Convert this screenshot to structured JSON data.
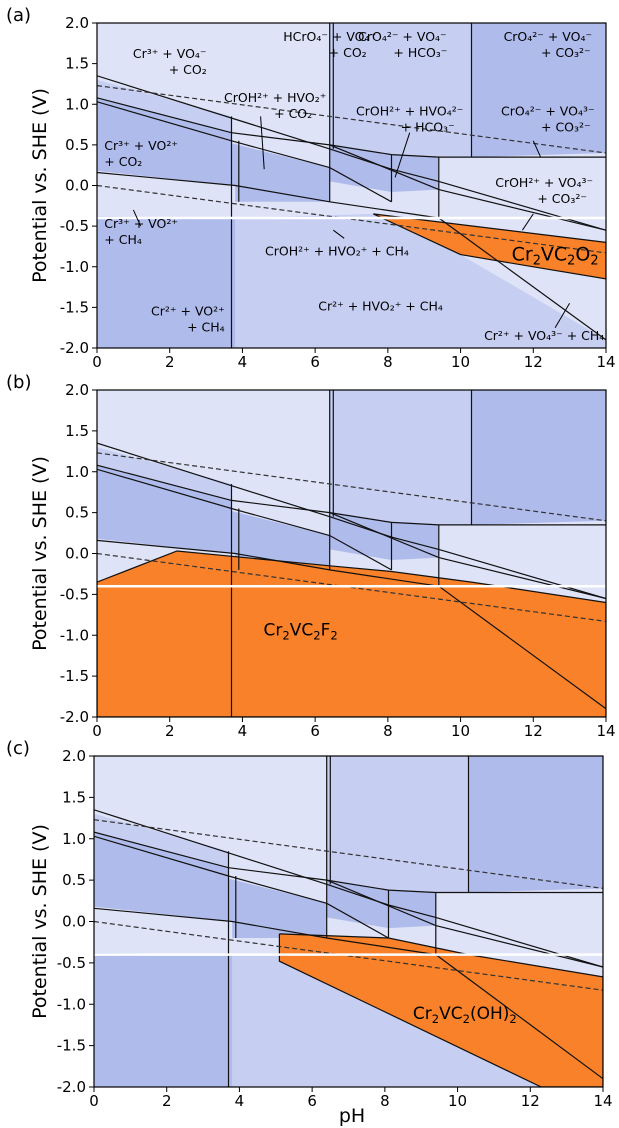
{
  "figure": {
    "xlabel": "pH",
    "ylabel": "Potential vs. SHE (V)",
    "xticks": [
      "0",
      "2",
      "4",
      "6",
      "8",
      "10",
      "12",
      "14"
    ],
    "yticks": [
      "2.0",
      "1.5",
      "1.0",
      "0.5",
      "0.0",
      "-0.5",
      "-1.0",
      "-1.5",
      "-2.0"
    ]
  },
  "colors": {
    "light": "#dfe3f7",
    "mid": "#c6cef2",
    "dark": "#afbbeb",
    "orange": "#f8812a",
    "dash": "#333333",
    "white_line": "#ffffff"
  },
  "chart_data": [
    {
      "type": "area",
      "panel": "(a)",
      "xlim": [
        0,
        14
      ],
      "ylim": [
        -2.0,
        2.0
      ],
      "solid_phase_label": {
        "parts": [
          "Cr",
          "2",
          "VC",
          "2",
          "O",
          "2"
        ]
      },
      "species_labels": [
        {
          "lines": [
            "Cr³⁺ + VO₄⁻",
            "+ CO₂"
          ]
        },
        {
          "lines": [
            "HCrO₄⁻ + VO₄⁻",
            "+ CO₂"
          ]
        },
        {
          "lines": [
            "CrO₄²⁻ + VO₄⁻",
            "+ HCO₃⁻"
          ]
        },
        {
          "lines": [
            "CrO₄²⁻ + VO₄⁻",
            "+ CO₃²⁻"
          ]
        },
        {
          "lines": [
            "CrOH²⁺ + HVO₂⁺",
            "+ CO₂"
          ]
        },
        {
          "lines": [
            "CrOH²⁺ + HVO₄²⁻",
            "+ HCO₃⁻"
          ]
        },
        {
          "lines": [
            "CrO₄²⁻ + VO₄³⁻",
            "+ CO₃²⁻"
          ]
        },
        {
          "lines": [
            "Cr³⁺ + VO²⁺",
            "+ CO₂"
          ]
        },
        {
          "lines": [
            "CrOH²⁺ + VO₄³⁻",
            "+ CO₃²⁻"
          ]
        },
        {
          "lines": [
            "Cr³⁺ + VO²⁺",
            "+ CH₄"
          ]
        },
        {
          "lines": [
            "CrOH²⁺ + HVO₂⁺ + CH₄"
          ]
        },
        {
          "lines": [
            "Cr²⁺ + VO²⁺",
            "+ CH₄"
          ]
        },
        {
          "lines": [
            "Cr²⁺ + HVO₂⁺ + CH₄"
          ]
        },
        {
          "lines": [
            "Cr²⁺ + VO₄³⁻ + CH₄"
          ]
        }
      ],
      "phase_boundaries_pH": [
        3.8,
        6.4,
        8.1,
        9.4,
        10.3
      ],
      "water_lines": {
        "upper": [
          [
            0,
            1.23
          ],
          [
            14,
            0.4
          ]
        ],
        "lower": [
          [
            0,
            0.0
          ],
          [
            14,
            -0.83
          ]
        ]
      },
      "reference_potential": -0.4,
      "stability_region": [
        [
          7.6,
          -0.35
        ],
        [
          14,
          -0.7
        ],
        [
          14,
          -1.15
        ],
        [
          12,
          -1.0
        ],
        [
          10,
          -0.85
        ],
        [
          7.6,
          -0.35
        ]
      ]
    },
    {
      "type": "area",
      "panel": "(b)",
      "xlim": [
        0,
        14
      ],
      "ylim": [
        -2.0,
        2.0
      ],
      "solid_phase_label": {
        "parts": [
          "Cr",
          "2",
          "VC",
          "2",
          "F",
          "2"
        ]
      },
      "phase_boundaries_pH": [
        3.8,
        6.4,
        8.1,
        9.4,
        10.3
      ],
      "water_lines": {
        "upper": [
          [
            0,
            1.23
          ],
          [
            14,
            0.4
          ]
        ],
        "lower": [
          [
            0,
            0.0
          ],
          [
            14,
            -0.83
          ]
        ]
      },
      "reference_potential": -0.4,
      "stability_region": [
        [
          0,
          -0.35
        ],
        [
          2.2,
          0.03
        ],
        [
          6.4,
          -0.15
        ],
        [
          8.1,
          -0.22
        ],
        [
          10.3,
          -0.35
        ],
        [
          14,
          -0.6
        ],
        [
          14,
          -2.0
        ],
        [
          0,
          -2.0
        ]
      ]
    },
    {
      "type": "area",
      "panel": "(c)",
      "xlim": [
        0,
        14
      ],
      "ylim": [
        -2.0,
        2.0
      ],
      "solid_phase_label": {
        "parts": [
          "Cr",
          "2",
          "VC",
          "2",
          "(OH)",
          "2"
        ]
      },
      "phase_boundaries_pH": [
        3.7,
        6.4,
        8.1,
        9.4,
        10.3
      ],
      "water_lines": {
        "upper": [
          [
            0,
            1.23
          ],
          [
            14,
            0.4
          ]
        ],
        "lower": [
          [
            0,
            0.0
          ],
          [
            14,
            -0.83
          ]
        ]
      },
      "reference_potential": -0.4,
      "stability_region": [
        [
          5.1,
          -0.15
        ],
        [
          8.1,
          -0.2
        ],
        [
          10.3,
          -0.4
        ],
        [
          14,
          -0.67
        ],
        [
          14,
          -2.0
        ],
        [
          12.3,
          -2.0
        ],
        [
          5.1,
          -0.48
        ]
      ]
    }
  ]
}
